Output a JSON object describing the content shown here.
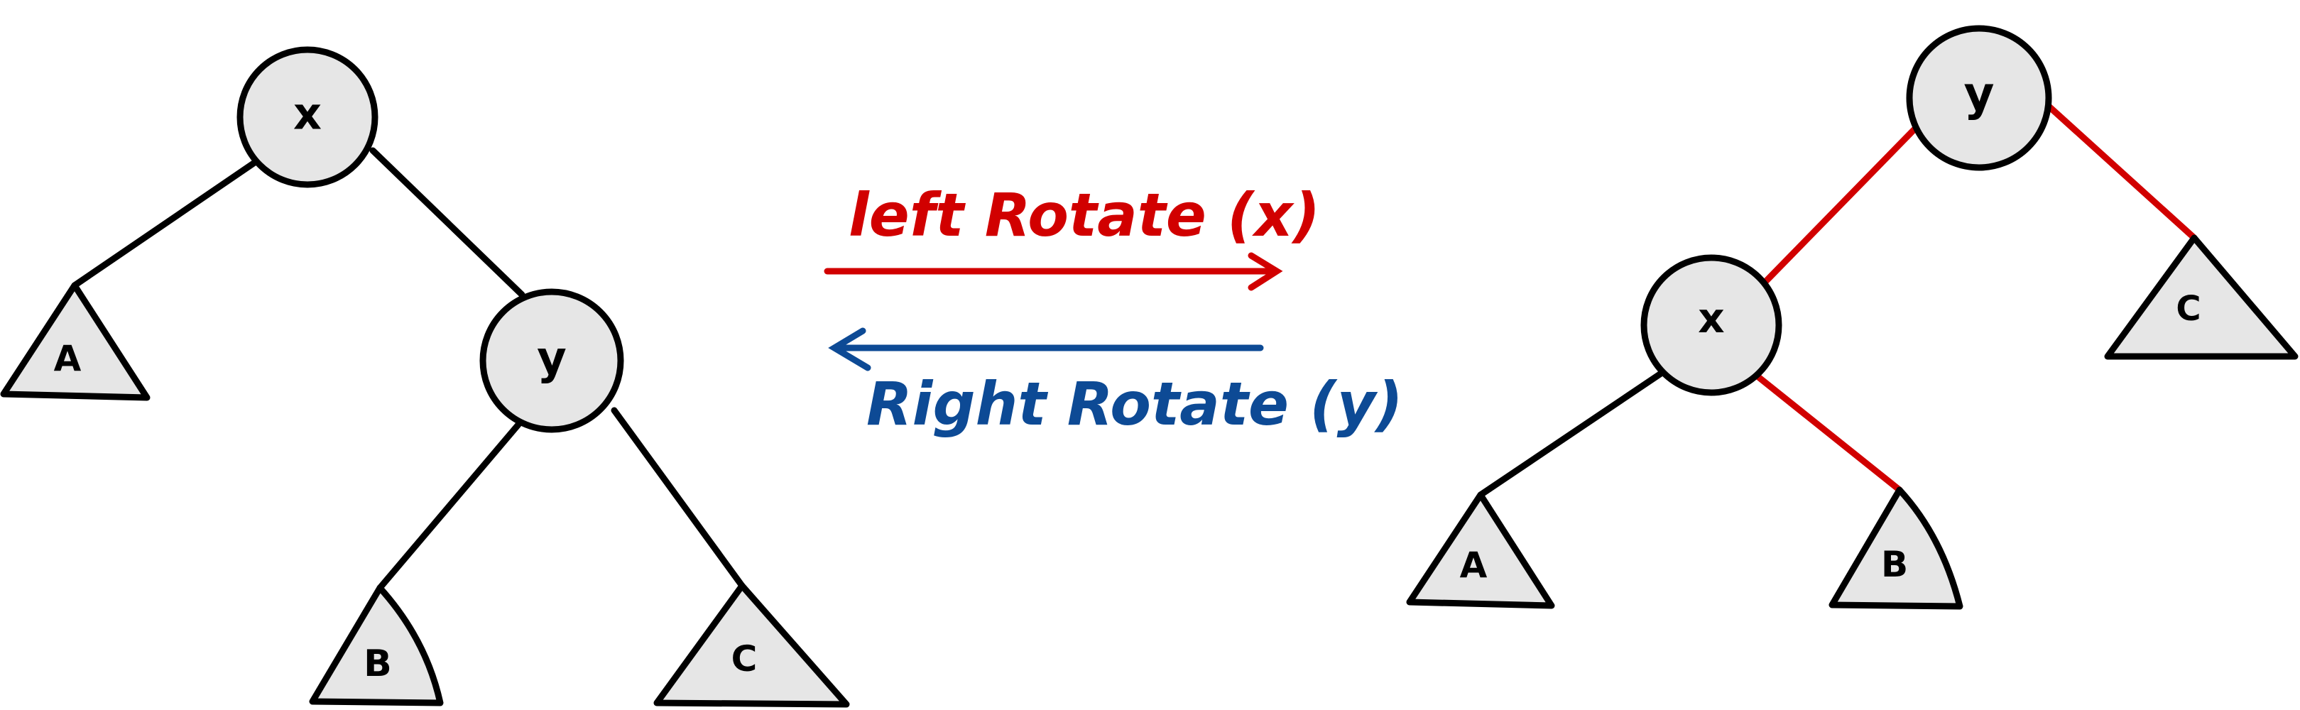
{
  "colors": {
    "edge": "#000000",
    "rotated_edge": "#d10000",
    "left_caption": "#d10000",
    "right_caption": "#0d4a95",
    "node_fill": "#e6e6e6",
    "node_stroke": "#000000"
  },
  "left_tree": {
    "root": "x",
    "child": "y",
    "subtree_a": "A",
    "subtree_b": "B",
    "subtree_c": "C"
  },
  "right_tree": {
    "root": "y",
    "child": "x",
    "subtree_a": "A",
    "subtree_b": "B",
    "subtree_c": "C"
  },
  "operations": {
    "left_rotate": "left Rotate (x)",
    "right_rotate": "Right Rotate (y)"
  }
}
